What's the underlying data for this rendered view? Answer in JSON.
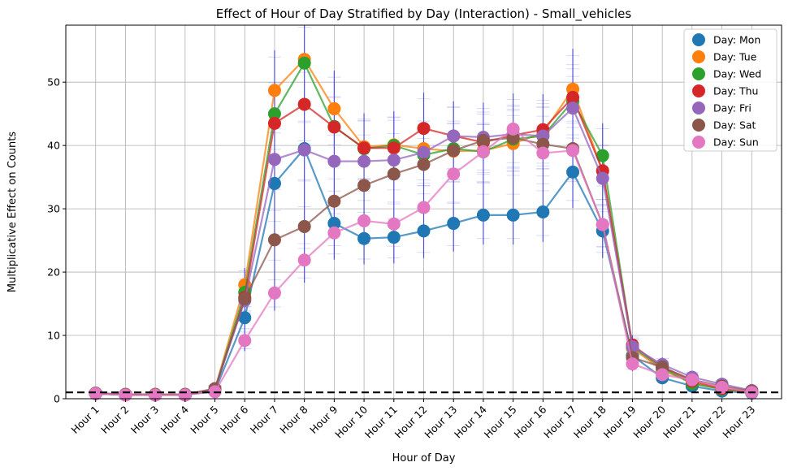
{
  "chart_data": {
    "type": "line",
    "title": "Effect of Hour of Day Stratified by Day (Interaction) - Small_vehicles",
    "xlabel": "Hour of Day",
    "ylabel": "Multiplicative Effect on Counts",
    "ylim": [
      0,
      59
    ],
    "yticks": [
      0,
      10,
      20,
      30,
      40,
      50
    ],
    "grid": true,
    "legend_position": "top-right",
    "reference_line": {
      "y": 1,
      "style": "dashed",
      "color": "#000000"
    },
    "error_bar_color": "#3333dd",
    "categories": [
      "Hour 1",
      "Hour 2",
      "Hour 3",
      "Hour 4",
      "Hour 5",
      "Hour 6",
      "Hour 7",
      "Hour 8",
      "Hour 9",
      "Hour 10",
      "Hour 11",
      "Hour 12",
      "Hour 13",
      "Hour 14",
      "Hour 15",
      "Hour 16",
      "Hour 17",
      "Hour 18",
      "Hour 19",
      "Hour 20",
      "Hour 21",
      "Hour 22",
      "Hour 23"
    ],
    "series": [
      {
        "name": "Day: Mon",
        "color": "#1f77b4",
        "values": [
          0.8,
          0.6,
          0.6,
          0.6,
          1.2,
          12.8,
          34.0,
          39.5,
          27.7,
          25.3,
          25.5,
          26.5,
          27.7,
          29.0,
          29.0,
          29.5,
          35.8,
          26.5,
          6.8,
          3.3,
          2.0,
          1.2,
          0.9
        ]
      },
      {
        "name": "Day: Tue",
        "color": "#ff7f0e",
        "values": [
          0.8,
          0.6,
          0.6,
          0.6,
          1.5,
          18.0,
          48.7,
          53.6,
          45.8,
          39.8,
          40.1,
          39.5,
          39.1,
          39.2,
          40.3,
          42.0,
          48.9,
          36.0,
          8.0,
          4.5,
          2.5,
          1.5,
          1.0
        ]
      },
      {
        "name": "Day: Wed",
        "color": "#2ca02c",
        "values": [
          0.8,
          0.6,
          0.6,
          0.6,
          1.4,
          16.8,
          45.0,
          53.0,
          43.0,
          39.5,
          40.0,
          38.5,
          39.5,
          39.0,
          41.0,
          41.5,
          47.0,
          38.4,
          8.2,
          4.8,
          2.4,
          1.5,
          1.0
        ]
      },
      {
        "name": "Day: Thu",
        "color": "#d62728",
        "values": [
          0.8,
          0.6,
          0.6,
          0.6,
          1.4,
          16.0,
          43.5,
          46.5,
          42.9,
          39.6,
          39.6,
          42.7,
          41.5,
          40.5,
          41.6,
          42.5,
          47.6,
          36.0,
          8.5,
          5.0,
          2.8,
          1.6,
          1.1
        ]
      },
      {
        "name": "Day: Fri",
        "color": "#9467bd",
        "values": [
          0.8,
          0.6,
          0.6,
          0.6,
          1.5,
          15.5,
          37.8,
          39.3,
          37.5,
          37.5,
          37.7,
          38.9,
          41.5,
          41.3,
          41.8,
          41.5,
          45.9,
          34.8,
          8.2,
          5.4,
          3.4,
          2.3,
          1.3
        ]
      },
      {
        "name": "Day: Sat",
        "color": "#8c564b",
        "values": [
          0.9,
          0.7,
          0.7,
          0.7,
          1.6,
          15.8,
          25.1,
          27.2,
          31.2,
          33.7,
          35.5,
          37.0,
          39.2,
          40.8,
          41.2,
          40.2,
          39.5,
          27.5,
          6.5,
          5.0,
          3.0,
          2.0,
          1.2
        ]
      },
      {
        "name": "Day: Sun",
        "color": "#e377c2",
        "values": [
          0.8,
          0.6,
          0.6,
          0.6,
          1.1,
          9.2,
          16.7,
          21.9,
          26.2,
          28.1,
          27.6,
          30.2,
          35.5,
          39.0,
          42.6,
          38.8,
          39.2,
          27.5,
          5.5,
          3.8,
          3.0,
          1.8,
          1.0
        ]
      }
    ]
  }
}
